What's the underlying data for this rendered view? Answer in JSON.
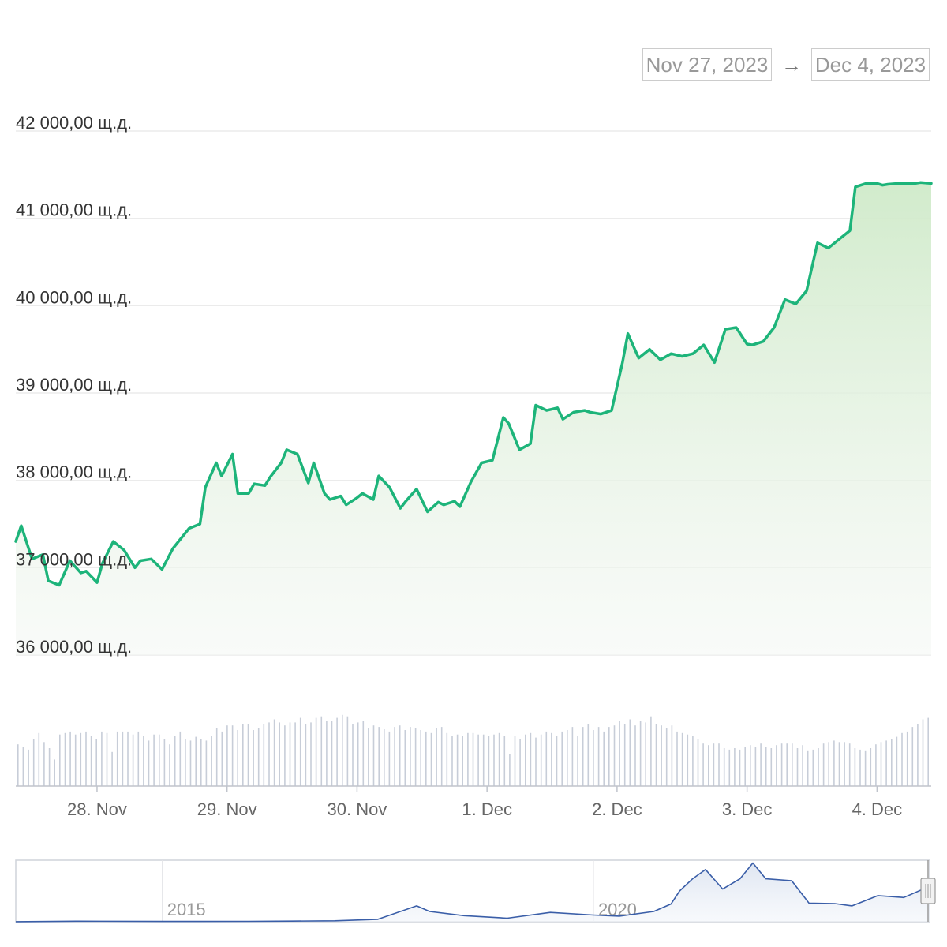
{
  "range_selector": {
    "from": "Nov 27, 2023",
    "arrow": "→",
    "to": "Dec 4, 2023"
  },
  "colors": {
    "price_line": "#1db47a",
    "area_top": "#d4edd0",
    "volume_bar": "#c7cdd8",
    "navigator_line": "#3a5ea8",
    "gridline": "#e8e8e8"
  },
  "chart_data": {
    "type": "line",
    "y_unit": "щ.д.",
    "ylim": [
      36000,
      42000
    ],
    "y_ticks": [
      {
        "value": 36000,
        "label": "36 000,00 щ.д."
      },
      {
        "value": 37000,
        "label": "37 000,00 щ.д."
      },
      {
        "value": 38000,
        "label": "38 000,00 щ.д."
      },
      {
        "value": 39000,
        "label": "39 000,00 щ.д."
      },
      {
        "value": 40000,
        "label": "40 000,00 щ.д."
      },
      {
        "value": 41000,
        "label": "41 000,00 щ.д."
      },
      {
        "value": 42000,
        "label": "42 000,00 щ.д."
      }
    ],
    "x_range": [
      "2023-11-27T09:00",
      "2023-12-04T10:00"
    ],
    "x_ticks": [
      {
        "date": "2023-11-28",
        "label": "28. Nov"
      },
      {
        "date": "2023-11-29",
        "label": "29. Nov"
      },
      {
        "date": "2023-11-30",
        "label": "30. Nov"
      },
      {
        "date": "2023-12-01",
        "label": "1. Dec"
      },
      {
        "date": "2023-12-02",
        "label": "2. Dec"
      },
      {
        "date": "2023-12-03",
        "label": "3. Dec"
      },
      {
        "date": "2023-12-04",
        "label": "4. Dec"
      }
    ],
    "grid": true,
    "legend": "none",
    "price_series": {
      "x": [
        "2023-11-27T09:00",
        "2023-11-27T10:00",
        "2023-11-27T12:00",
        "2023-11-27T14:00",
        "2023-11-27T15:00",
        "2023-11-27T17:00",
        "2023-11-27T19:00",
        "2023-11-27T21:00",
        "2023-11-27T22:00",
        "2023-11-28T00:00",
        "2023-11-28T01:00",
        "2023-11-28T03:00",
        "2023-11-28T05:00",
        "2023-11-28T07:00",
        "2023-11-28T08:00",
        "2023-11-28T10:00",
        "2023-11-28T12:00",
        "2023-11-28T14:00",
        "2023-11-28T17:00",
        "2023-11-28T19:00",
        "2023-11-28T20:00",
        "2023-11-28T22:00",
        "2023-11-28T23:00",
        "2023-11-29T01:00",
        "2023-11-29T02:00",
        "2023-11-29T04:00",
        "2023-11-29T05:00",
        "2023-11-29T07:00",
        "2023-11-29T08:00",
        "2023-11-29T10:00",
        "2023-11-29T11:00",
        "2023-11-29T13:00",
        "2023-11-29T15:00",
        "2023-11-29T16:00",
        "2023-11-29T18:00",
        "2023-11-29T19:00",
        "2023-11-29T21:00",
        "2023-11-29T22:00",
        "2023-11-30T00:00",
        "2023-11-30T01:00",
        "2023-11-30T03:00",
        "2023-11-30T04:00",
        "2023-11-30T06:00",
        "2023-11-30T08:00",
        "2023-11-30T09:00",
        "2023-11-30T11:00",
        "2023-11-30T13:00",
        "2023-11-30T15:00",
        "2023-11-30T16:00",
        "2023-11-30T18:00",
        "2023-11-30T19:00",
        "2023-11-30T21:00",
        "2023-11-30T23:00",
        "2023-12-01T01:00",
        "2023-12-01T03:00",
        "2023-12-01T04:00",
        "2023-12-01T06:00",
        "2023-12-01T08:00",
        "2023-12-01T09:00",
        "2023-12-01T11:00",
        "2023-12-01T13:00",
        "2023-12-01T14:00",
        "2023-12-01T16:00",
        "2023-12-01T18:00",
        "2023-12-01T19:00",
        "2023-12-01T21:00",
        "2023-12-01T23:00",
        "2023-12-02T01:00",
        "2023-12-02T02:00",
        "2023-12-02T04:00",
        "2023-12-02T06:00",
        "2023-12-02T08:00",
        "2023-12-02T10:00",
        "2023-12-02T12:00",
        "2023-12-02T14:00",
        "2023-12-02T16:00",
        "2023-12-02T18:00",
        "2023-12-02T20:00",
        "2023-12-02T22:00",
        "2023-12-03T00:00",
        "2023-12-03T01:00",
        "2023-12-03T03:00",
        "2023-12-03T05:00",
        "2023-12-03T07:00",
        "2023-12-03T09:00",
        "2023-12-03T11:00",
        "2023-12-03T13:00",
        "2023-12-03T15:00",
        "2023-12-03T17:00",
        "2023-12-03T19:00",
        "2023-12-03T20:00",
        "2023-12-03T22:00",
        "2023-12-04T00:00",
        "2023-12-04T01:00",
        "2023-12-04T02:00",
        "2023-12-04T04:00",
        "2023-12-04T05:00",
        "2023-12-04T07:00",
        "2023-12-04T08:00",
        "2023-12-04T10:00"
      ],
      "y": [
        37300,
        37480,
        37100,
        37150,
        36850,
        36800,
        37080,
        36940,
        36960,
        36830,
        37050,
        37300,
        37200,
        37000,
        37080,
        37100,
        36980,
        37220,
        37450,
        37500,
        37920,
        38200,
        38050,
        38300,
        37850,
        37850,
        37960,
        37940,
        38040,
        38200,
        38350,
        38300,
        37970,
        38200,
        37850,
        37780,
        37820,
        37720,
        37800,
        37850,
        37780,
        38050,
        37920,
        37680,
        37760,
        37900,
        37640,
        37750,
        37720,
        37760,
        37700,
        37980,
        38200,
        38230,
        38720,
        38650,
        38350,
        38420,
        38860,
        38800,
        38830,
        38700,
        38780,
        38800,
        38780,
        38760,
        38800,
        39350,
        39680,
        39400,
        39500,
        39380,
        39450,
        39420,
        39450,
        39550,
        39350,
        39730,
        39750,
        39560,
        39550,
        39590,
        39750,
        40070,
        40020,
        40170,
        40720,
        40660,
        40760,
        40860,
        41360,
        41400,
        41400,
        41380,
        41390,
        41400,
        41400,
        41400,
        41410,
        41400
      ]
    },
    "volume_series": {
      "note_units": "relative",
      "values": [
        0.55,
        0.52,
        0.48,
        0.62,
        0.7,
        0.58,
        0.5,
        0.35,
        0.68,
        0.7,
        0.72,
        0.68,
        0.7,
        0.72,
        0.66,
        0.62,
        0.72,
        0.7,
        0.45,
        0.72,
        0.72,
        0.72,
        0.68,
        0.72,
        0.66,
        0.6,
        0.68,
        0.68,
        0.62,
        0.55,
        0.66,
        0.72,
        0.62,
        0.6,
        0.65,
        0.62,
        0.6,
        0.66,
        0.76,
        0.72,
        0.8,
        0.8,
        0.74,
        0.82,
        0.82,
        0.74,
        0.76,
        0.82,
        0.84,
        0.88,
        0.84,
        0.8,
        0.84,
        0.84,
        0.9,
        0.82,
        0.84,
        0.9,
        0.92,
        0.86,
        0.86,
        0.9,
        0.94,
        0.92,
        0.82,
        0.84,
        0.86,
        0.76,
        0.8,
        0.78,
        0.75,
        0.72,
        0.78,
        0.8,
        0.74,
        0.78,
        0.76,
        0.74,
        0.72,
        0.7,
        0.76,
        0.78,
        0.7,
        0.66,
        0.68,
        0.66,
        0.7,
        0.7,
        0.68,
        0.68,
        0.66,
        0.68,
        0.7,
        0.66,
        0.42,
        0.66,
        0.62,
        0.68,
        0.7,
        0.64,
        0.68,
        0.72,
        0.7,
        0.66,
        0.72,
        0.74,
        0.78,
        0.66,
        0.78,
        0.82,
        0.74,
        0.78,
        0.72,
        0.78,
        0.8,
        0.86,
        0.82,
        0.88,
        0.8,
        0.86,
        0.84,
        0.92,
        0.82,
        0.8,
        0.76,
        0.8,
        0.72,
        0.7,
        0.68,
        0.66,
        0.62,
        0.56,
        0.54,
        0.56,
        0.56,
        0.5,
        0.48,
        0.5,
        0.48,
        0.52,
        0.54,
        0.52,
        0.56,
        0.52,
        0.5,
        0.54,
        0.56,
        0.56,
        0.56,
        0.5,
        0.54,
        0.46,
        0.48,
        0.5,
        0.56,
        0.58,
        0.6,
        0.58,
        0.58,
        0.56,
        0.5,
        0.48,
        0.46,
        0.5,
        0.55,
        0.58,
        0.6,
        0.62,
        0.65,
        0.7,
        0.72,
        0.78,
        0.82,
        0.88,
        0.9
      ]
    },
    "navigator": {
      "labels": [
        {
          "year": 2015,
          "label": "2015"
        },
        {
          "year": 2020,
          "label": "2020"
        }
      ],
      "series": {
        "x": [
          2013.3,
          2014.0,
          2015.0,
          2016.0,
          2016.5,
          2017.0,
          2017.5,
          2017.95,
          2018.1,
          2018.5,
          2019.0,
          2019.5,
          2020.0,
          2020.3,
          2020.7,
          2020.9,
          2021.0,
          2021.15,
          2021.3,
          2021.5,
          2021.7,
          2021.85,
          2022.0,
          2022.3,
          2022.5,
          2022.8,
          2023.0,
          2023.3,
          2023.6,
          2023.9
        ],
        "y": [
          100,
          600,
          300,
          420,
          650,
          1000,
          2600,
          17000,
          11000,
          6500,
          3800,
          10000,
          7200,
          6000,
          11000,
          19000,
          33000,
          46000,
          56000,
          35000,
          46000,
          63000,
          46000,
          44000,
          20000,
          19500,
          17000,
          28000,
          26000,
          38000
        ]
      }
    }
  }
}
